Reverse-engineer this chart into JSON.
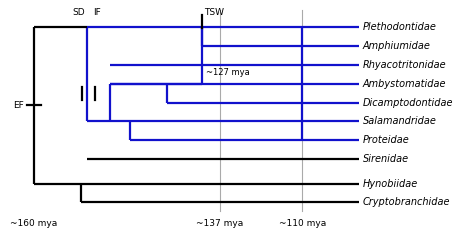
{
  "taxa": [
    "Plethodontidae",
    "Amphiumidae",
    "Rhyacotritonidae",
    "Ambystomatidae",
    "Dicamptodontidae",
    "Salamandridae",
    "Proteidae",
    "Sirenidae",
    "Hynobiidae",
    "Cryptobranchidae"
  ],
  "time_labels": [
    "~160 mya",
    "~137 mya",
    "~110 mya"
  ],
  "background_color": "#ffffff",
  "black_color": "#000000",
  "blue_color": "#1111cc",
  "gray_color": "#aaaaaa",
  "font_size_taxa": 7.0,
  "font_size_labels": 6.5,
  "font_size_nodes": 6.5,
  "lw": 1.6
}
